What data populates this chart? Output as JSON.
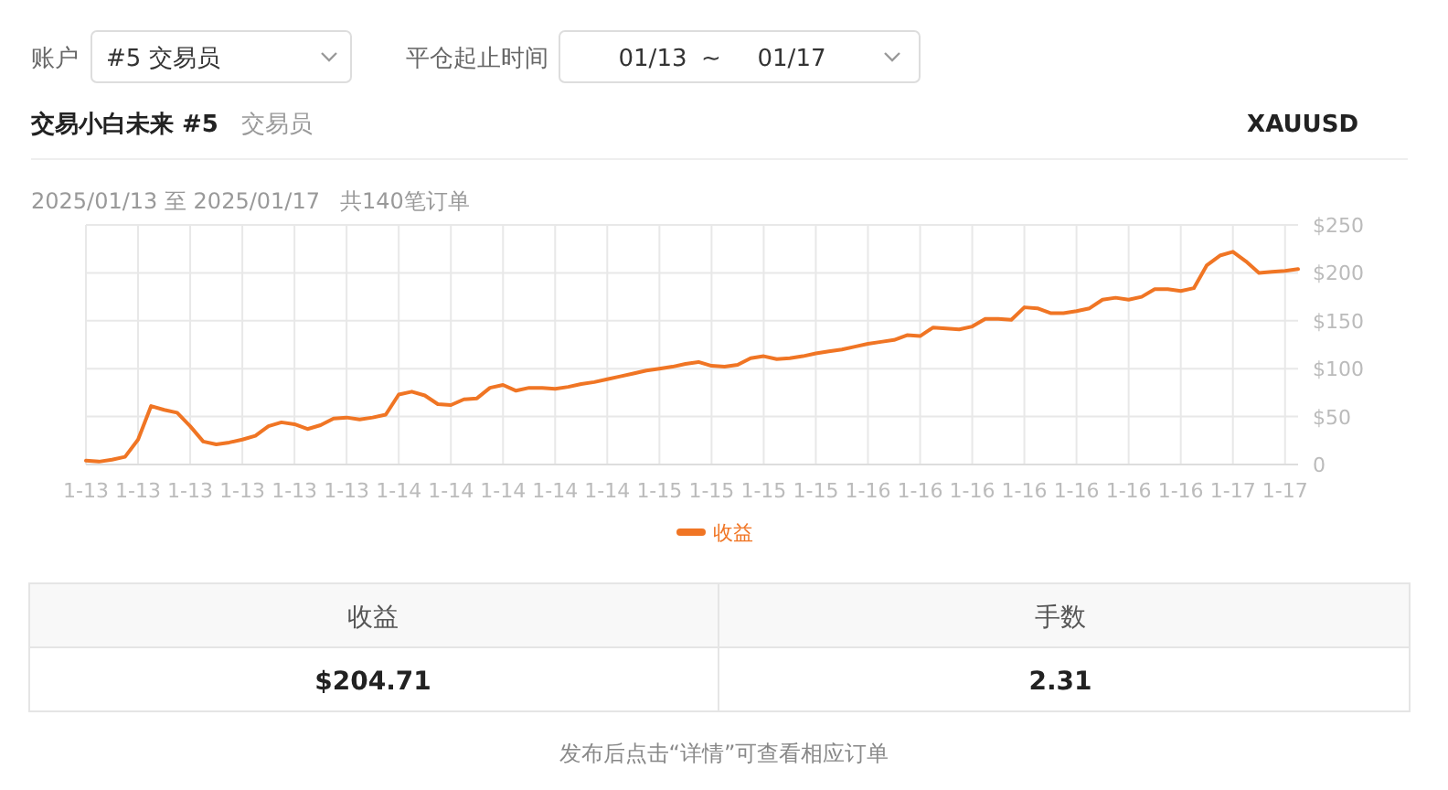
{
  "chart_data": [
    {
      "type": "other",
      "annotations": [
        "账户",
        "#5 交易员",
        "平仓起止时间",
        "01/13",
        "~",
        "01/17",
        "交易小白未来 #5",
        "交易员",
        "XAUUSD"
      ]
    },
    {
      "type": "line",
      "title": "2025/01/13 至 2025/01/17",
      "subtitle": "共140笔订单",
      "series": [
        {
          "name": "收益",
          "color": "#f07524",
          "values": [
            4,
            3,
            5,
            8,
            26,
            61,
            57,
            54,
            40,
            24,
            21,
            23,
            26,
            30,
            40,
            44,
            42,
            37,
            41,
            48,
            49,
            47,
            49,
            52,
            73,
            76,
            72,
            63,
            62,
            68,
            69,
            80,
            83,
            77,
            80,
            80,
            79,
            81,
            84,
            86,
            89,
            92,
            95,
            98,
            100,
            102,
            105,
            107,
            103,
            102,
            104,
            111,
            113,
            110,
            111,
            113,
            116,
            118,
            120,
            123,
            126,
            128,
            130,
            135,
            134,
            143,
            142,
            141,
            144,
            152,
            152,
            151,
            164,
            163,
            158,
            158,
            160,
            163,
            172,
            174,
            172,
            175,
            183,
            183,
            181,
            184,
            208,
            218,
            222,
            212,
            200,
            201,
            202,
            204
          ]
        }
      ],
      "categories": [
        "1-13",
        null,
        null,
        null,
        "1-13",
        null,
        null,
        null,
        "1-13",
        null,
        null,
        null,
        "1-13",
        null,
        null,
        null,
        "1-13",
        null,
        null,
        null,
        "1-13",
        null,
        null,
        null,
        "1-14",
        null,
        null,
        null,
        "1-14",
        null,
        null,
        null,
        "1-14",
        null,
        null,
        null,
        "1-14",
        null,
        null,
        null,
        "1-14",
        null,
        null,
        null,
        "1-15",
        null,
        null,
        null,
        "1-15",
        null,
        null,
        null,
        "1-15",
        null,
        null,
        null,
        "1-15",
        null,
        null,
        null,
        "1-16",
        null,
        null,
        null,
        "1-16",
        null,
        null,
        null,
        "1-16",
        null,
        null,
        null,
        "1-16",
        null,
        null,
        null,
        "1-16",
        null,
        null,
        null,
        "1-16",
        null,
        null,
        null,
        "1-16",
        null,
        null,
        null,
        "1-17",
        null,
        null,
        null,
        "1-17",
        null
      ],
      "ylim": [
        0,
        250
      ],
      "yticks": [
        0,
        {
          "value": 50,
          "label": "$50"
        },
        {
          "value": 100,
          "label": "$100"
        },
        {
          "value": 150,
          "label": "$150"
        },
        {
          "value": 200,
          "label": "$200"
        },
        {
          "value": 250,
          "label": "$250"
        }
      ],
      "grid": true,
      "legend": "bottom",
      "marker": "none",
      "line_style": "solid"
    },
    {
      "type": "other",
      "annotations": [
        "收益",
        "手数",
        "$204.71",
        "2.31",
        "发布后点击“详情”可查看相应订单"
      ]
    }
  ]
}
